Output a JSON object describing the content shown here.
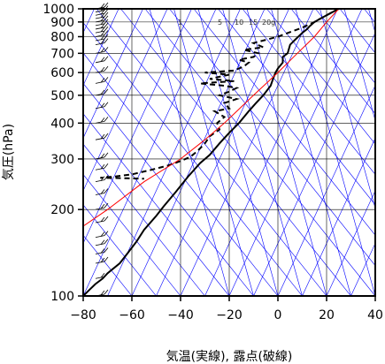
{
  "chart_data": {
    "type": "line",
    "title": "",
    "xlabel": "気温(実線), 露点(破線)",
    "ylabel": "気圧(hPa)",
    "xlim": [
      -80,
      40
    ],
    "ylim": [
      1000,
      100
    ],
    "y_scale": "log",
    "x_ticks": [
      "−80",
      "−60",
      "−40",
      "−20",
      "0",
      "20",
      "40"
    ],
    "x_tick_values": [
      -80,
      -60,
      -40,
      -20,
      0,
      20,
      40
    ],
    "y_ticks": [
      "100",
      "200",
      "300",
      "400",
      "500",
      "600",
      "700",
      "800",
      "900",
      "1000"
    ],
    "y_tick_values": [
      100,
      200,
      300,
      400,
      500,
      600,
      700,
      800,
      900,
      1000
    ],
    "mixing_ratio_labels": [
      "1",
      "5",
      "10",
      "15",
      "20g"
    ],
    "series": [
      {
        "style": "solid",
        "color": "#000000",
        "points": [
          [
            25,
            1000
          ],
          [
            22,
            970
          ],
          [
            20,
            950
          ],
          [
            17,
            920
          ],
          [
            15,
            900
          ],
          [
            13,
            870
          ],
          [
            12,
            850
          ],
          [
            10,
            825
          ],
          [
            7,
            780
          ],
          [
            5,
            750
          ],
          [
            4,
            700
          ],
          [
            2,
            680
          ],
          [
            2,
            650
          ],
          [
            0,
            620
          ],
          [
            -1,
            600
          ],
          [
            -2,
            570
          ],
          [
            -3,
            540
          ],
          [
            -6,
            500
          ],
          [
            -9,
            470
          ],
          [
            -12,
            440
          ],
          [
            -16,
            400
          ],
          [
            -20,
            370
          ],
          [
            -24,
            340
          ],
          [
            -28,
            310
          ],
          [
            -32,
            290
          ],
          [
            -37,
            260
          ],
          [
            -42,
            230
          ],
          [
            -47,
            205
          ],
          [
            -50,
            190
          ],
          [
            -55,
            170
          ],
          [
            -58,
            155
          ],
          [
            -62,
            140
          ],
          [
            -65,
            130
          ],
          [
            -70,
            120
          ],
          [
            -72,
            115
          ],
          [
            -75,
            110
          ],
          [
            -77,
            106
          ],
          [
            -80,
            100
          ]
        ]
      },
      {
        "style": "dashed",
        "color": "#000000",
        "points": [
          [
            25,
            1000
          ],
          [
            22,
            970
          ],
          [
            19,
            940
          ],
          [
            15,
            900
          ],
          [
            10,
            860
          ],
          [
            5,
            830
          ],
          [
            0,
            800
          ],
          [
            -5,
            780
          ],
          [
            -10,
            760
          ],
          [
            -6,
            735
          ],
          [
            -14,
            720
          ],
          [
            -8,
            700
          ],
          [
            -10,
            680
          ],
          [
            -16,
            665
          ],
          [
            -12,
            650
          ],
          [
            -14,
            630
          ],
          [
            -18,
            610
          ],
          [
            -30,
            600
          ],
          [
            -20,
            590
          ],
          [
            -24,
            580
          ],
          [
            -28,
            570
          ],
          [
            -18,
            560
          ],
          [
            -32,
            550
          ],
          [
            -22,
            540
          ],
          [
            -17,
            530
          ],
          [
            -20,
            515
          ],
          [
            -24,
            500
          ],
          [
            -17,
            485
          ],
          [
            -22,
            470
          ],
          [
            -20,
            450
          ],
          [
            -26,
            440
          ],
          [
            -22,
            420
          ],
          [
            -25,
            400
          ],
          [
            -24,
            380
          ],
          [
            -28,
            360
          ],
          [
            -30,
            340
          ],
          [
            -33,
            320
          ],
          [
            -36,
            305
          ],
          [
            -40,
            295
          ],
          [
            -45,
            285
          ],
          [
            -52,
            275
          ],
          [
            -60,
            265
          ],
          [
            -68,
            260
          ],
          [
            -73,
            258
          ],
          [
            -62,
            257
          ],
          [
            -55,
            256
          ]
        ]
      },
      {
        "style": "solid",
        "color": "#ff0000",
        "points": [
          [
            25,
            1000
          ],
          [
            20,
            900
          ],
          [
            15,
            800
          ],
          [
            8,
            700
          ],
          [
            0,
            600
          ],
          [
            -10,
            500
          ],
          [
            -22,
            400
          ],
          [
            -30,
            350
          ],
          [
            -40,
            300
          ],
          [
            -55,
            250
          ],
          [
            -70,
            200
          ],
          [
            -80,
            175
          ]
        ]
      }
    ],
    "wind_barb_levels": [
      1000,
      975,
      950,
      925,
      900,
      875,
      850,
      825,
      800,
      775,
      750,
      700,
      650,
      600,
      550,
      500,
      450,
      400,
      350,
      300,
      275,
      250,
      225,
      200,
      180,
      160,
      150,
      140,
      130,
      115,
      100
    ],
    "grid": true,
    "legend": "none"
  },
  "colors": {
    "isotherm": "#0000ff",
    "dry_adiabat": "#0000ff",
    "moist_adiabat": "#0000ff",
    "parcel_path": "#ff0000",
    "temperature": "#000000",
    "dewpoint": "#000000"
  }
}
